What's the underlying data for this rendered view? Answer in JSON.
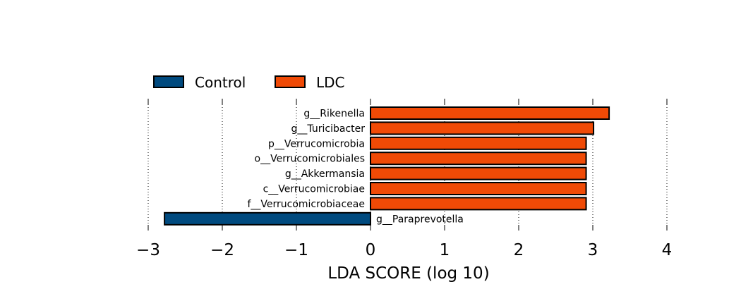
{
  "chart_data": {
    "type": "bar",
    "orientation": "horizontal",
    "xlabel": "LDA SCORE (log 10)",
    "ylabel": "",
    "title": "",
    "xlim": [
      -3,
      4
    ],
    "xticks": [
      -3,
      -2,
      -1,
      0,
      1,
      2,
      3,
      4
    ],
    "xtick_labels": [
      "−3",
      "−2",
      "−1",
      "0",
      "1",
      "2",
      "3",
      "4"
    ],
    "grid": "vertical dotted",
    "legend": {
      "placement": "top-left",
      "entries": [
        {
          "name": "Control",
          "color": "#004a7f"
        },
        {
          "name": "LDC",
          "color": "#f04a06"
        }
      ]
    },
    "bars": [
      {
        "label": "g__Rikenella",
        "value": 3.22,
        "group": "LDC"
      },
      {
        "label": "g__Turicibacter",
        "value": 3.01,
        "group": "LDC"
      },
      {
        "label": "p__Verrucomicrobia",
        "value": 2.91,
        "group": "LDC"
      },
      {
        "label": "o__Verrucomicrobiales",
        "value": 2.91,
        "group": "LDC"
      },
      {
        "label": "g__Akkermansia",
        "value": 2.91,
        "group": "LDC"
      },
      {
        "label": "c__Verrucomicrobiae",
        "value": 2.91,
        "group": "LDC"
      },
      {
        "label": "f__Verrucomicrobiaceae",
        "value": 2.91,
        "group": "LDC"
      },
      {
        "label": "g__Paraprevotella",
        "value": -2.78,
        "group": "Control"
      }
    ]
  }
}
